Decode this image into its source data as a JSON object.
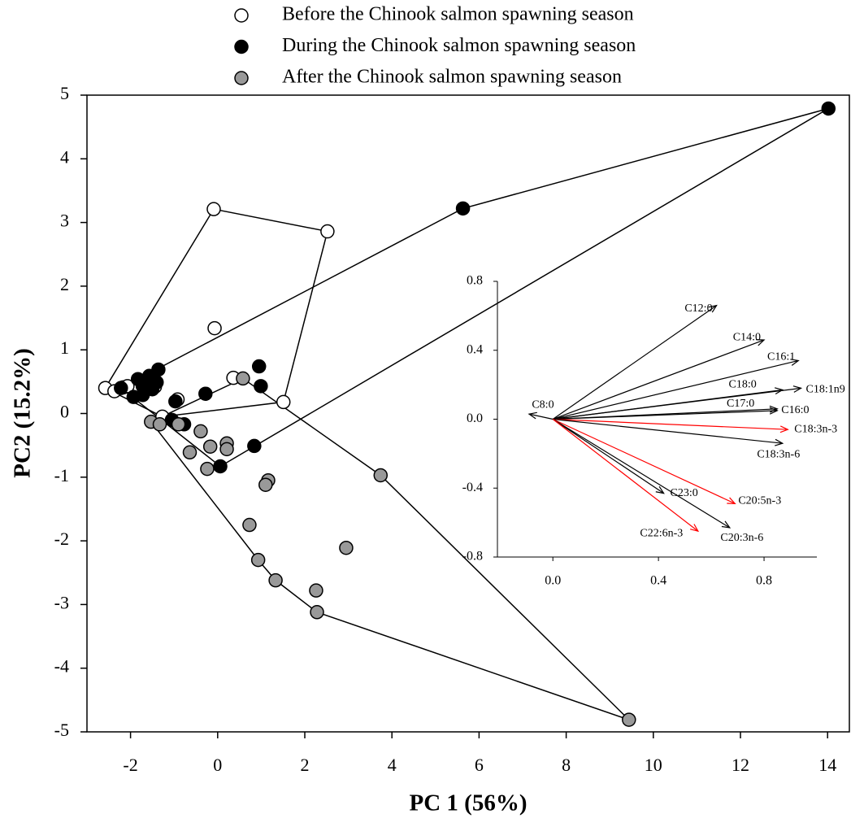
{
  "chart_data": [
    {
      "type": "scatter",
      "xlabel": "PC 1 (56%)",
      "ylabel": "PC2 (15.2%)",
      "legend": "top",
      "hulls": true,
      "xlim": [
        -3,
        14.5
      ],
      "ylim": [
        -5,
        5
      ],
      "xticks": [
        -2,
        0,
        2,
        4,
        6,
        8,
        10,
        12,
        14
      ],
      "yticks": [
        -5,
        -4,
        -3,
        -2,
        -1,
        0,
        1,
        2,
        3,
        4,
        5
      ],
      "series": [
        {
          "name": "Before the Chinook salmon spawning season",
          "color": "#ffffff",
          "x": [
            -2.58,
            -2.37,
            -2.17,
            -2.07,
            -0.09,
            2.52,
            -0.07,
            0.36,
            1.51,
            -0.92,
            -1.44,
            -1.27
          ],
          "y": [
            0.4,
            0.35,
            0.41,
            0.43,
            3.21,
            2.86,
            1.34,
            0.56,
            0.18,
            0.22,
            0.42,
            -0.05
          ]
        },
        {
          "name": "During the Chinook salmon spawning season",
          "color": "#000000",
          "x": [
            14.02,
            5.63,
            -1.36,
            -1.83,
            -1.57,
            -1.72,
            -1.5,
            -1.93,
            -1.72,
            -1.4,
            -2.22,
            -0.28,
            0.95,
            0.99,
            -0.97,
            -1.05,
            -0.77,
            0.06,
            0.84
          ],
          "y": [
            4.79,
            3.22,
            0.69,
            0.54,
            0.59,
            0.43,
            0.38,
            0.26,
            0.29,
            0.49,
            0.4,
            0.31,
            0.74,
            0.43,
            0.19,
            -0.1,
            -0.17,
            -0.83,
            -0.51
          ]
        },
        {
          "name": "After the Chinook salmon spawning season",
          "color": "#999999",
          "x": [
            9.44,
            3.74,
            0.58,
            -1.53,
            -1.33,
            -0.9,
            -0.39,
            -0.17,
            0.21,
            0.21,
            -0.64,
            -0.24,
            1.16,
            1.1,
            2.95,
            0.73,
            0.93,
            1.33,
            2.26,
            2.28
          ],
          "y": [
            -4.81,
            -0.97,
            0.55,
            -0.13,
            -0.17,
            -0.17,
            -0.28,
            -0.52,
            -0.47,
            -0.56,
            -0.61,
            -0.87,
            -1.05,
            -1.12,
            -2.11,
            -1.75,
            -2.3,
            -2.62,
            -2.78,
            -3.12
          ]
        }
      ]
    },
    {
      "type": "biplot",
      "xlim": [
        -0.21,
        1.0
      ],
      "ylim": [
        -0.8,
        0.8
      ],
      "xticks": [
        {
          "value": 0,
          "label": "0.0"
        },
        0.4,
        0.8
      ],
      "yticks": [
        -0.8,
        -0.4,
        {
          "value": 0,
          "label": "0.0"
        },
        0.4,
        0.8
      ],
      "vectors": {
        "labels": [
          "C12:0",
          "C14:0",
          "C16:1",
          "C18:0",
          "C18:1n9",
          "C17:0",
          "C16:0",
          "C18:3n-3",
          "C18:3n-6",
          "C8:0",
          "C23:0",
          "C20:5n-3",
          "C20:3n-6",
          "C22:6n-3"
        ],
        "x": [
          0.62,
          0.8,
          0.93,
          0.87,
          0.94,
          0.85,
          0.85,
          0.89,
          0.87,
          -0.09,
          0.42,
          0.69,
          0.67,
          0.55
        ],
        "y": [
          0.66,
          0.46,
          0.34,
          0.17,
          0.18,
          0.06,
          0.05,
          -0.06,
          -0.14,
          0.03,
          -0.43,
          -0.49,
          -0.63,
          -0.65
        ],
        "colors": [
          "#000000",
          "#000000",
          "#000000",
          "#000000",
          "#000000",
          "#000000",
          "#000000",
          "#ff0000",
          "#000000",
          "#000000",
          "#000000",
          "#ff0000",
          "#000000",
          "#ff0000"
        ]
      }
    }
  ]
}
